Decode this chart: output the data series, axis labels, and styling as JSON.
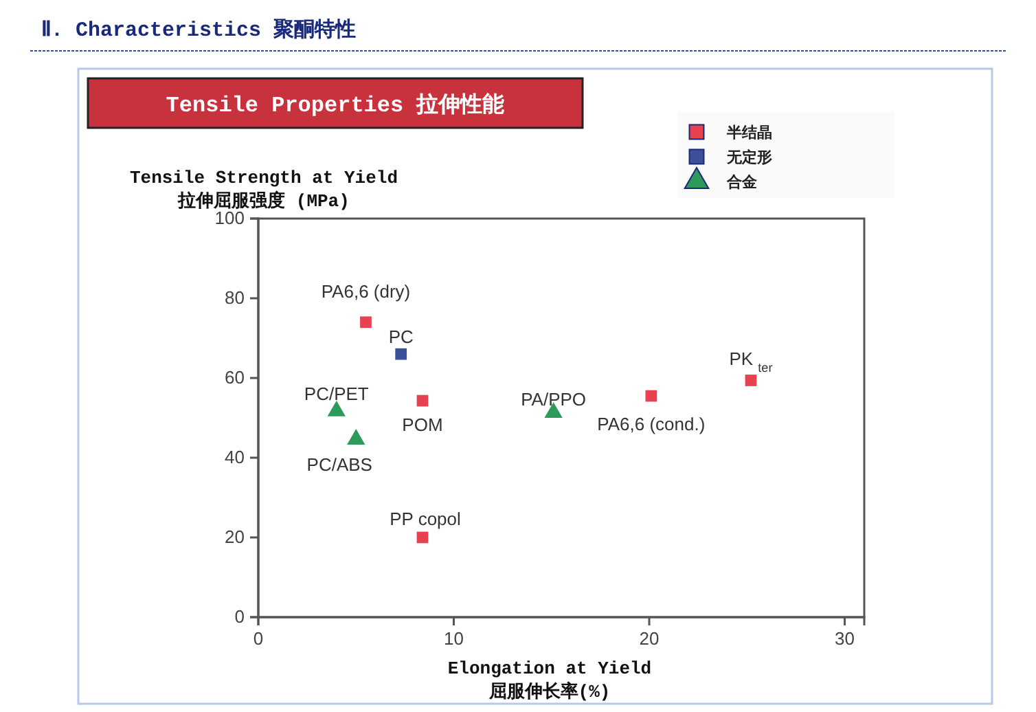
{
  "chart_data": {
    "type": "scatter",
    "title": "Ⅱ. Characteristics 聚酮特性",
    "subtitle": "Tensile Properties 拉伸性能",
    "xlabel": "Elongation at Yield\n屈服伸长率(%)",
    "ylabel": "Tensile Strength at Yield\n拉伸屈服强度 (MPa)",
    "xlim": [
      0,
      31
    ],
    "xticks": [
      0,
      10,
      20,
      30
    ],
    "ylim": [
      0,
      100
    ],
    "yticks": [
      0,
      20,
      40,
      60,
      80,
      100
    ],
    "grid": false,
    "legend": "top right",
    "series": [
      {
        "name": "半结晶",
        "color": "#e8414f",
        "marker": "square",
        "x": [
          5.5,
          8.4,
          8.4,
          20.1,
          25.2
        ],
        "values": [
          74,
          54.3,
          20,
          55.5,
          59.4
        ]
      },
      {
        "name": "无定形",
        "color": "#3c4f9a",
        "marker": "square",
        "x": [
          7.3
        ],
        "values": [
          66
        ]
      },
      {
        "name": "合金",
        "color": "#2e9a5a",
        "marker": "triangle",
        "x": [
          4.0,
          5.0,
          15.1
        ],
        "values": [
          51.7,
          44.6,
          51.3
        ]
      }
    ],
    "annotations": [
      {
        "text": "PA6,6 (dry)",
        "x": 5.5,
        "y": 74
      },
      {
        "text": "PC",
        "x": 7.3,
        "y": 66
      },
      {
        "text": "PC/PET",
        "x": 4.0,
        "y": 51.7
      },
      {
        "text": "POM",
        "x": 8.4,
        "y": 54.3
      },
      {
        "text": "PC/ABS",
        "x": 5.0,
        "y": 44.6
      },
      {
        "text": "PP copol",
        "x": 8.4,
        "y": 20
      },
      {
        "text": "PA/PPO",
        "x": 15.1,
        "y": 51.3
      },
      {
        "text": "PA6,6 (cond.)",
        "x": 20.1,
        "y": 55.5
      },
      {
        "text": "PK $_{ter}$",
        "x": 25.2,
        "y": 59.4
      }
    ]
  }
}
